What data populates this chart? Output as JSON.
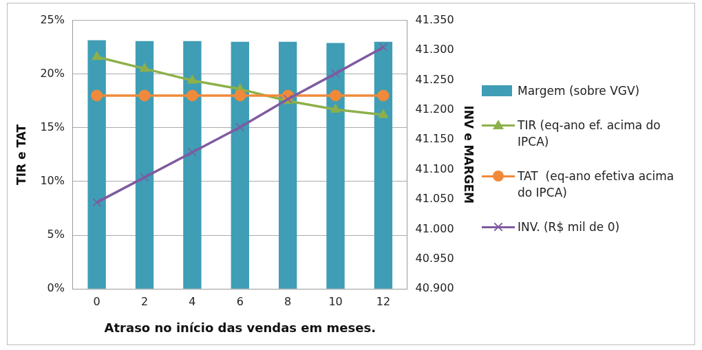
{
  "chart_data": {
    "type": "bar",
    "xlabel": "Atraso no início das vendas em meses.",
    "ylabel": "TIR e TAT",
    "y2label": "INV e MARGEM",
    "categories": [
      "0",
      "2",
      "4",
      "6",
      "8",
      "10",
      "12"
    ],
    "series": [
      {
        "name": "Margem (sobre VGV)",
        "color": "#3f9db5",
        "values": [
          23.15,
          23.07,
          23.07,
          23.0,
          23.0,
          22.9,
          23.0
        ]
      },
      {
        "name": "TIR (eq-ano ef. acima do IPCA)",
        "type": "line",
        "color": "#8db04a",
        "marker": "triangle",
        "values": [
          21.6,
          20.5,
          19.4,
          18.6,
          17.5,
          16.7,
          16.2
        ]
      },
      {
        "name": "TAT  (eq-ano efetiva acima do IPCA)",
        "type": "line",
        "color": "#f08a3a",
        "marker": "circle",
        "values": [
          18.0,
          18.0,
          18.0,
          18.0,
          18.0,
          18.0,
          18.0
        ]
      },
      {
        "name": "INV. (R$ mil de 0)",
        "type": "line",
        "color": "#7f5aa0",
        "marker": "cross",
        "axis": "y2",
        "values": [
          41045,
          41087,
          41129,
          41171,
          41218,
          41261,
          41305
        ]
      }
    ],
    "ylim": [
      0,
      25
    ],
    "yticks": [
      {
        "value": 0,
        "label": "0%"
      },
      {
        "value": 5,
        "label": "5%"
      },
      {
        "value": 10,
        "label": "10%"
      },
      {
        "value": 15,
        "label": "15%"
      },
      {
        "value": 20,
        "label": "20%"
      },
      {
        "value": 25,
        "label": "25%"
      }
    ],
    "y2lim": [
      40900,
      41350
    ],
    "y2ticks": [
      {
        "value": 40900,
        "label": "40.900"
      },
      {
        "value": 40950,
        "label": "40.950"
      },
      {
        "value": 41000,
        "label": "41.000"
      },
      {
        "value": 41050,
        "label": "41.050"
      },
      {
        "value": 41100,
        "label": "41.100"
      },
      {
        "value": 41150,
        "label": "41.150"
      },
      {
        "value": 41200,
        "label": "41.200"
      },
      {
        "value": 41250,
        "label": "41.250"
      },
      {
        "value": 41300,
        "label": "41.300"
      },
      {
        "value": 41350,
        "label": "41.350"
      }
    ],
    "grid": "y",
    "legend": "right"
  }
}
